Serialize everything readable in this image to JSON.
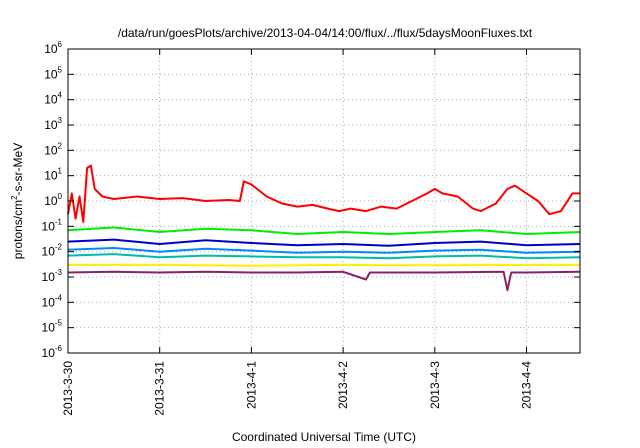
{
  "chart_data": {
    "type": "line",
    "title": "/data/run/goesPlots/archive/2013-04-04/14:00/flux/../flux/5daysMoonFluxes.txt",
    "xlabel": "Coordinated Universal Time (UTC)",
    "ylabel": {
      "base": "protons/cm",
      "sup": "2",
      "rest": "-s-sr-MeV"
    },
    "yscale": "log",
    "ylim": [
      1e-06,
      1000000.0
    ],
    "xlim": [
      "2013-03-30T00:00",
      "2013-04-04T14:00"
    ],
    "grid": true,
    "x_ticks": [
      "2013-3-30",
      "2013-3-31",
      "2013-4-1",
      "2013-4-2",
      "2013-4-3",
      "2013-4-4"
    ],
    "y_ticks": [
      {
        "base": "10",
        "exp": "-6"
      },
      {
        "base": "10",
        "exp": "-5"
      },
      {
        "base": "10",
        "exp": "-4"
      },
      {
        "base": "10",
        "exp": "-3"
      },
      {
        "base": "10",
        "exp": "-2"
      },
      {
        "base": "10",
        "exp": "-1"
      },
      {
        "base": "10",
        "exp": "0"
      },
      {
        "base": "10",
        "exp": "1"
      },
      {
        "base": "10",
        "exp": "2"
      },
      {
        "base": "10",
        "exp": "3"
      },
      {
        "base": "10",
        "exp": "4"
      },
      {
        "base": "10",
        "exp": "5"
      },
      {
        "base": "10",
        "exp": "6"
      }
    ],
    "series": [
      {
        "color": "#ff0000",
        "points": [
          [
            "2013-03-30T00:00",
            0.3
          ],
          [
            "2013-03-30T01:00",
            2.0
          ],
          [
            "2013-03-30T02:00",
            0.2
          ],
          [
            "2013-03-30T03:00",
            1.5
          ],
          [
            "2013-03-30T04:00",
            0.15
          ],
          [
            "2013-03-30T05:00",
            20
          ],
          [
            "2013-03-30T06:00",
            25
          ],
          [
            "2013-03-30T07:00",
            3.0
          ],
          [
            "2013-03-30T09:00",
            1.5
          ],
          [
            "2013-03-30T12:00",
            1.2
          ],
          [
            "2013-03-30T18:00",
            1.5
          ],
          [
            "2013-03-31T00:00",
            1.2
          ],
          [
            "2013-03-31T06:00",
            1.3
          ],
          [
            "2013-03-31T12:00",
            1.0
          ],
          [
            "2013-03-31T18:00",
            1.1
          ],
          [
            "2013-03-31T21:00",
            1.0
          ],
          [
            "2013-03-31T22:00",
            6.0
          ],
          [
            "2013-04-01T00:00",
            4.5
          ],
          [
            "2013-04-01T04:00",
            1.5
          ],
          [
            "2013-04-01T08:00",
            0.8
          ],
          [
            "2013-04-01T12:00",
            0.6
          ],
          [
            "2013-04-01T16:00",
            0.7
          ],
          [
            "2013-04-01T20:00",
            0.5
          ],
          [
            "2013-04-01T23:00",
            0.4
          ],
          [
            "2013-04-02T02:00",
            0.5
          ],
          [
            "2013-04-02T06:00",
            0.4
          ],
          [
            "2013-04-02T10:00",
            0.6
          ],
          [
            "2013-04-02T14:00",
            0.5
          ],
          [
            "2013-04-02T18:00",
            1.0
          ],
          [
            "2013-04-02T22:00",
            2.0
          ],
          [
            "2013-04-03T00:00",
            3.0
          ],
          [
            "2013-04-03T02:00",
            2.0
          ],
          [
            "2013-04-03T06:00",
            1.5
          ],
          [
            "2013-04-03T10:00",
            0.5
          ],
          [
            "2013-04-03T12:00",
            0.4
          ],
          [
            "2013-04-03T16:00",
            0.8
          ],
          [
            "2013-04-03T19:00",
            3.0
          ],
          [
            "2013-04-03T21:00",
            4.0
          ],
          [
            "2013-04-04T00:00",
            2.0
          ],
          [
            "2013-04-04T03:00",
            1.0
          ],
          [
            "2013-04-04T06:00",
            0.3
          ],
          [
            "2013-04-04T09:00",
            0.4
          ],
          [
            "2013-04-04T12:00",
            2.0
          ],
          [
            "2013-04-04T14:00",
            2.0
          ]
        ]
      },
      {
        "color": "#00ee00",
        "points": [
          [
            "2013-03-30T00:00",
            0.07
          ],
          [
            "2013-03-30T12:00",
            0.09
          ],
          [
            "2013-03-31T00:00",
            0.06
          ],
          [
            "2013-03-31T12:00",
            0.08
          ],
          [
            "2013-04-01T00:00",
            0.07
          ],
          [
            "2013-04-01T12:00",
            0.05
          ],
          [
            "2013-04-02T00:00",
            0.06
          ],
          [
            "2013-04-02T12:00",
            0.05
          ],
          [
            "2013-04-03T00:00",
            0.06
          ],
          [
            "2013-04-03T12:00",
            0.07
          ],
          [
            "2013-04-04T00:00",
            0.05
          ],
          [
            "2013-04-04T14:00",
            0.06
          ]
        ]
      },
      {
        "color": "#0000cc",
        "points": [
          [
            "2013-03-30T00:00",
            0.025
          ],
          [
            "2013-03-30T12:00",
            0.03
          ],
          [
            "2013-03-31T00:00",
            0.02
          ],
          [
            "2013-03-31T12:00",
            0.028
          ],
          [
            "2013-04-01T00:00",
            0.022
          ],
          [
            "2013-04-01T12:00",
            0.018
          ],
          [
            "2013-04-02T00:00",
            0.02
          ],
          [
            "2013-04-02T12:00",
            0.017
          ],
          [
            "2013-04-03T00:00",
            0.022
          ],
          [
            "2013-04-03T12:00",
            0.025
          ],
          [
            "2013-04-04T00:00",
            0.018
          ],
          [
            "2013-04-04T14:00",
            0.02
          ]
        ]
      },
      {
        "color": "#0088ff",
        "points": [
          [
            "2013-03-30T00:00",
            0.012
          ],
          [
            "2013-03-30T12:00",
            0.014
          ],
          [
            "2013-03-31T00:00",
            0.01
          ],
          [
            "2013-03-31T12:00",
            0.013
          ],
          [
            "2013-04-01T00:00",
            0.011
          ],
          [
            "2013-04-01T12:00",
            0.009
          ],
          [
            "2013-04-02T00:00",
            0.01
          ],
          [
            "2013-04-02T12:00",
            0.009
          ],
          [
            "2013-04-03T00:00",
            0.011
          ],
          [
            "2013-04-03T12:00",
            0.012
          ],
          [
            "2013-04-04T00:00",
            0.009
          ],
          [
            "2013-04-04T14:00",
            0.01
          ]
        ]
      },
      {
        "color": "#00bbaa",
        "points": [
          [
            "2013-03-30T00:00",
            0.007
          ],
          [
            "2013-03-30T12:00",
            0.008
          ],
          [
            "2013-03-31T00:00",
            0.006
          ],
          [
            "2013-03-31T12:00",
            0.007
          ],
          [
            "2013-04-01T00:00",
            0.0065
          ],
          [
            "2013-04-01T12:00",
            0.006
          ],
          [
            "2013-04-02T00:00",
            0.006
          ],
          [
            "2013-04-02T12:00",
            0.0055
          ],
          [
            "2013-04-03T00:00",
            0.0065
          ],
          [
            "2013-04-03T12:00",
            0.007
          ],
          [
            "2013-04-04T00:00",
            0.0055
          ],
          [
            "2013-04-04T14:00",
            0.006
          ]
        ]
      },
      {
        "color": "#ffee00",
        "points": [
          [
            "2013-03-30T00:00",
            0.003
          ],
          [
            "2013-03-31T00:00",
            0.003
          ],
          [
            "2013-04-01T00:00",
            0.0028
          ],
          [
            "2013-04-02T00:00",
            0.003
          ],
          [
            "2013-04-03T00:00",
            0.0029
          ],
          [
            "2013-04-04T00:00",
            0.003
          ],
          [
            "2013-04-04T14:00",
            0.003
          ]
        ]
      },
      {
        "color": "#882266",
        "points": [
          [
            "2013-03-30T00:00",
            0.0015
          ],
          [
            "2013-03-30T12:00",
            0.0016
          ],
          [
            "2013-03-31T00:00",
            0.0015
          ],
          [
            "2013-03-31T12:00",
            0.0016
          ],
          [
            "2013-04-01T00:00",
            0.0015
          ],
          [
            "2013-04-01T12:00",
            0.0015
          ],
          [
            "2013-04-02T00:00",
            0.0016
          ],
          [
            "2013-04-02T06:00",
            0.0008
          ],
          [
            "2013-04-02T07:00",
            0.0015
          ],
          [
            "2013-04-03T00:00",
            0.0015
          ],
          [
            "2013-04-03T18:00",
            0.0016
          ],
          [
            "2013-04-03T19:00",
            0.0003
          ],
          [
            "2013-04-03T20:00",
            0.0015
          ],
          [
            "2013-04-04T00:00",
            0.0015
          ],
          [
            "2013-04-04T14:00",
            0.0016
          ]
        ]
      }
    ]
  }
}
